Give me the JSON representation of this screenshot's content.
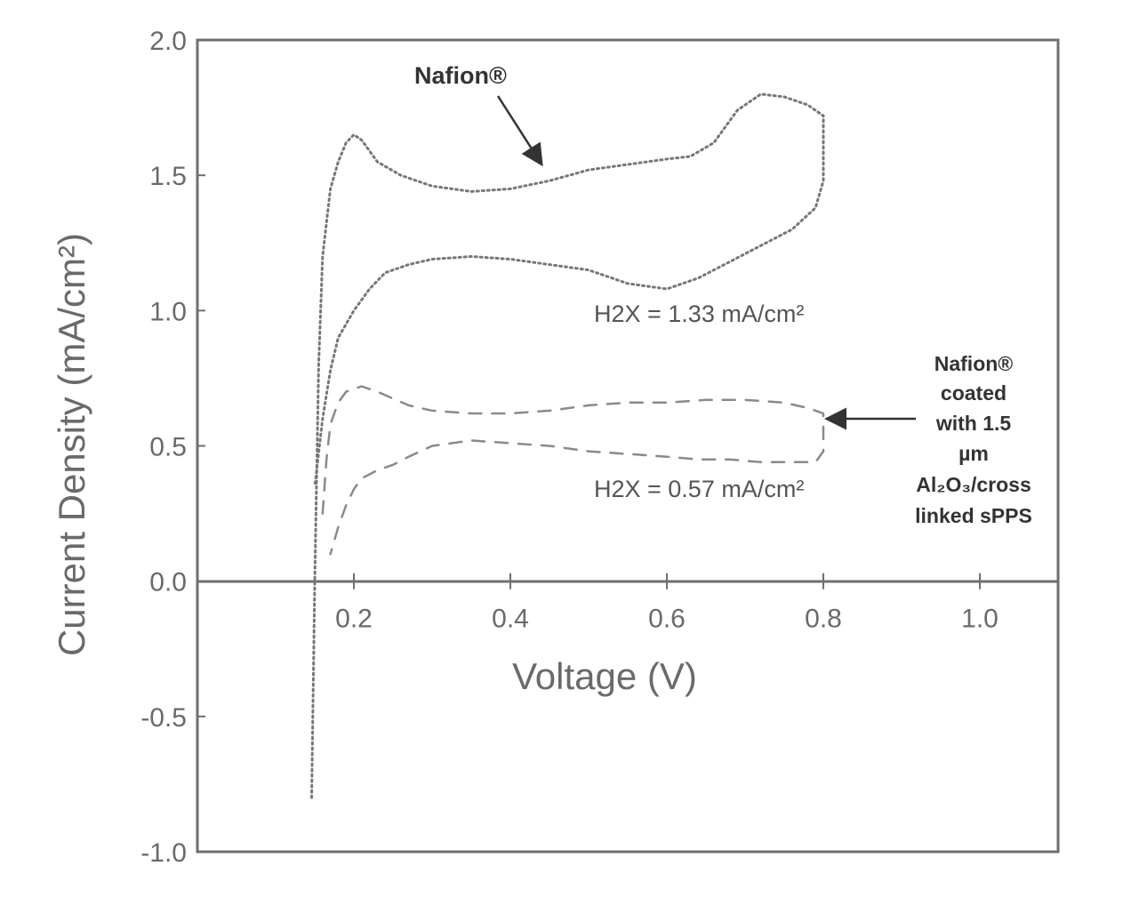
{
  "chart_data": {
    "type": "line",
    "xlabel": "Voltage (V)",
    "ylabel": "Current Density (mA/cm²)",
    "xlim": [
      0.0,
      1.1
    ],
    "ylim": [
      -1.0,
      2.0
    ],
    "x_ticks": [
      {
        "value": 0.2,
        "label": "0.2"
      },
      {
        "value": 0.4,
        "label": "0.4"
      },
      {
        "value": 0.6,
        "label": "0.6"
      },
      {
        "value": 0.8,
        "label": "0.8"
      },
      {
        "value": 1.0,
        "label": "1.0"
      }
    ],
    "y_ticks": [
      {
        "value": 2.0,
        "label": "2.0"
      },
      {
        "value": 1.5,
        "label": "1.5"
      },
      {
        "value": 1.0,
        "label": "1.0"
      },
      {
        "value": 0.5,
        "label": "0.5"
      },
      {
        "value": 0.0,
        "label": "0.0"
      },
      {
        "value": -0.5,
        "label": "-0.5"
      },
      {
        "value": -1.0,
        "label": "-1.0"
      }
    ],
    "grid": false,
    "series": [
      {
        "name": "Nafion®",
        "style": "dotted",
        "color": "#777777",
        "x": [
          0.146,
          0.15,
          0.155,
          0.16,
          0.17,
          0.18,
          0.19,
          0.2,
          0.21,
          0.23,
          0.26,
          0.3,
          0.35,
          0.4,
          0.45,
          0.5,
          0.55,
          0.6,
          0.63,
          0.66,
          0.69,
          0.72,
          0.75,
          0.78,
          0.8,
          0.8,
          0.8,
          0.79,
          0.76,
          0.72,
          0.68,
          0.64,
          0.6,
          0.55,
          0.5,
          0.45,
          0.4,
          0.35,
          0.3,
          0.27,
          0.24,
          0.22,
          0.2,
          0.18,
          0.17,
          0.16,
          0.15
        ],
        "y": [
          -0.8,
          0.0,
          0.8,
          1.2,
          1.45,
          1.55,
          1.62,
          1.65,
          1.63,
          1.55,
          1.5,
          1.46,
          1.44,
          1.45,
          1.48,
          1.52,
          1.54,
          1.56,
          1.57,
          1.62,
          1.74,
          1.8,
          1.79,
          1.76,
          1.72,
          1.6,
          1.48,
          1.38,
          1.3,
          1.24,
          1.18,
          1.12,
          1.08,
          1.1,
          1.15,
          1.17,
          1.19,
          1.2,
          1.19,
          1.17,
          1.14,
          1.08,
          1.0,
          0.9,
          0.78,
          0.6,
          0.35
        ]
      },
      {
        "name": "Nafion® coated with 1.5 µm Al2O3/cross linked sPPS",
        "style": "dashed",
        "color": "#8a8a8a",
        "x": [
          0.16,
          0.165,
          0.17,
          0.18,
          0.19,
          0.2,
          0.21,
          0.23,
          0.27,
          0.3,
          0.35,
          0.4,
          0.45,
          0.5,
          0.55,
          0.6,
          0.65,
          0.7,
          0.75,
          0.78,
          0.8,
          0.8,
          0.8,
          0.79,
          0.76,
          0.72,
          0.68,
          0.64,
          0.6,
          0.55,
          0.5,
          0.45,
          0.4,
          0.35,
          0.3,
          0.27,
          0.25,
          0.23,
          0.21,
          0.2,
          0.19,
          0.18,
          0.17
        ],
        "y": [
          0.25,
          0.45,
          0.58,
          0.66,
          0.7,
          0.71,
          0.72,
          0.7,
          0.65,
          0.63,
          0.62,
          0.62,
          0.63,
          0.65,
          0.66,
          0.66,
          0.67,
          0.67,
          0.66,
          0.64,
          0.62,
          0.55,
          0.48,
          0.44,
          0.44,
          0.44,
          0.45,
          0.45,
          0.46,
          0.47,
          0.48,
          0.5,
          0.51,
          0.52,
          0.5,
          0.46,
          0.43,
          0.41,
          0.38,
          0.34,
          0.28,
          0.2,
          0.1
        ]
      }
    ],
    "annotations": [
      {
        "text": "Nafion®"
      },
      {
        "text": "H2X = 1.33 mA/cm²"
      },
      {
        "text": "H2X = 0.57 mA/cm²"
      },
      {
        "lines": [
          "Nafion®",
          "coated",
          "with 1.5",
          "µm",
          "Al₂O₃/cross",
          "linked sPPS"
        ]
      }
    ]
  }
}
